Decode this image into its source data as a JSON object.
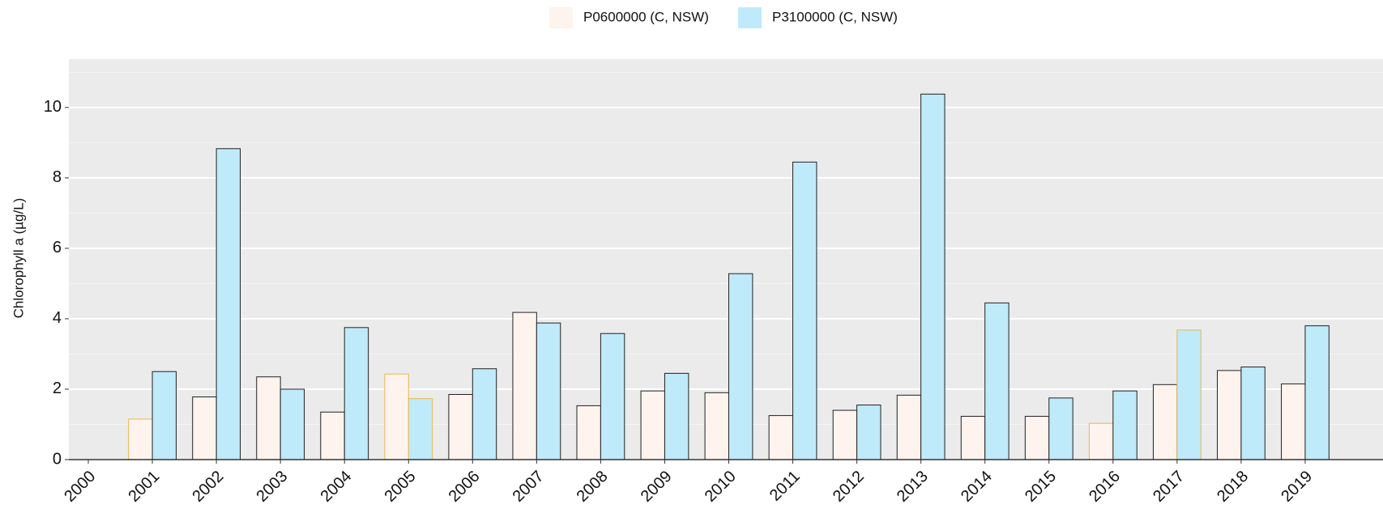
{
  "chart_data": {
    "type": "bar",
    "y_label": "Chlorophyll a (µg/L)",
    "categories": [
      "2000",
      "2001",
      "2002",
      "2003",
      "2004",
      "2005",
      "2006",
      "2007",
      "2008",
      "2009",
      "2010",
      "2011",
      "2012",
      "2013",
      "2014",
      "2015",
      "2016",
      "2017",
      "2018",
      "2019"
    ],
    "series": [
      {
        "name": "P0600000 (C, NSW)",
        "color": "#fff3ee",
        "values": [
          null,
          1.15,
          1.78,
          2.35,
          1.35,
          2.43,
          1.85,
          4.18,
          1.53,
          1.95,
          1.9,
          1.25,
          1.4,
          1.83,
          1.23,
          1.23,
          1.03,
          2.13,
          2.53,
          2.15
        ],
        "edge_colors": [
          null,
          "#e8b84a",
          "#222",
          "#222",
          "#222",
          "#e8b84a",
          "#222",
          "#222",
          "#222",
          "#222",
          "#222",
          "#222",
          "#222",
          "#222",
          "#222",
          "#222",
          "#e8b84a",
          "#222",
          "#222",
          "#222"
        ]
      },
      {
        "name": "P3100000 (C, NSW)",
        "color": "#bfeafa",
        "values": [
          null,
          2.5,
          8.83,
          2.0,
          3.75,
          1.73,
          2.58,
          3.88,
          3.58,
          2.45,
          5.28,
          8.45,
          1.55,
          10.38,
          4.45,
          1.75,
          1.95,
          3.68,
          2.63,
          3.8
        ],
        "edge_colors": [
          null,
          "#222",
          "#222",
          "#222",
          "#222",
          "#e8b84a",
          "#222",
          "#222",
          "#222",
          "#222",
          "#222",
          "#222",
          "#222",
          "#222",
          "#222",
          "#222",
          "#222",
          "#e8b84a",
          "#222",
          "#222"
        ]
      }
    ],
    "ylim": [
      0,
      11.375
    ],
    "yticks": [
      0,
      2,
      4,
      6,
      8,
      10
    ],
    "minor_yticks": [
      1,
      3,
      5,
      7,
      9,
      11
    ],
    "grid": true
  }
}
